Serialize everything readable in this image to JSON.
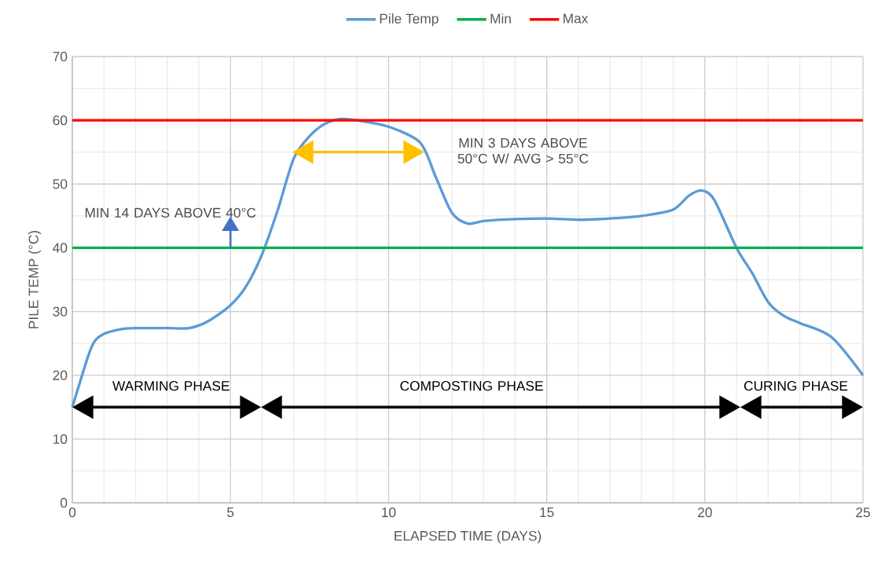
{
  "chart_data": {
    "type": "line",
    "xlabel": "ELAPSED TIME (DAYS)",
    "ylabel": "PILE TEMP (°C)",
    "xlim": [
      0,
      25
    ],
    "ylim": [
      0,
      70
    ],
    "xticks": [
      0,
      5,
      10,
      15,
      20,
      25
    ],
    "yticks": [
      0,
      10,
      20,
      30,
      40,
      50,
      60,
      70
    ],
    "grid": true,
    "legend": "top",
    "marker": "none",
    "line_style": "solid",
    "series": [
      {
        "name": "Pile Temp",
        "color": "#5b9bd5",
        "x": [
          0,
          0.5,
          0.7,
          1,
          1.5,
          2,
          3,
          3.7,
          4.3,
          5,
          5.5,
          6,
          6.5,
          7,
          7.5,
          8,
          8.5,
          9,
          10,
          11,
          11.5,
          12,
          12.5,
          13,
          14,
          15,
          16,
          17,
          18,
          19,
          19.5,
          19.9,
          20.3,
          21,
          21.5,
          22,
          22.5,
          23,
          24,
          25
        ],
        "values": [
          15,
          23,
          25.3,
          26.5,
          27.2,
          27.4,
          27.4,
          27.4,
          28.5,
          31,
          34,
          39,
          46,
          54,
          57.5,
          59.5,
          60.2,
          60,
          59,
          56.5,
          51,
          45.5,
          43.8,
          44.2,
          44.5,
          44.6,
          44.4,
          44.6,
          45,
          46,
          48.2,
          49,
          47.5,
          40,
          36,
          31.5,
          29.3,
          28.2,
          26,
          20
        ]
      },
      {
        "name": "Min",
        "color": "#00b050",
        "x": [
          0,
          25
        ],
        "values": [
          40,
          40
        ]
      },
      {
        "name": "Max",
        "color": "#ff0000",
        "x": [
          0,
          25
        ],
        "values": [
          60,
          60
        ]
      }
    ],
    "annotations": [
      "MIN 14 DAYS ABOVE 40°C",
      "MIN 3 DAYS ABOVE 50°C W/ AVG > 55°C",
      "WARMING PHASE",
      "COMPOSTING PHASE",
      "CURING PHASE"
    ]
  }
}
